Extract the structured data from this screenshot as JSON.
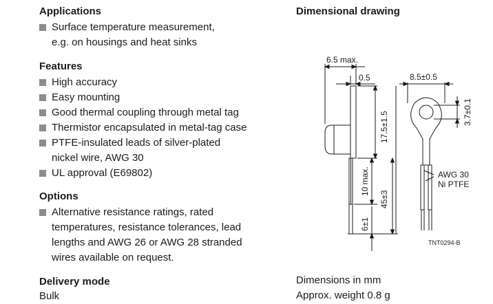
{
  "applications": {
    "heading": "Applications",
    "items": [
      {
        "lines": [
          "Surface temperature measurement,",
          "e.g. on housings and heat sinks"
        ]
      }
    ]
  },
  "features": {
    "heading": "Features",
    "items": [
      {
        "lines": [
          "High accuracy"
        ]
      },
      {
        "lines": [
          "Easy mounting"
        ]
      },
      {
        "lines": [
          "Good thermal coupling through metal tag"
        ]
      },
      {
        "lines": [
          "Thermistor encapsulated in metal-tag case"
        ]
      },
      {
        "lines": [
          "PTFE-insulated leads of silver-plated",
          "nickel wire, AWG 30"
        ]
      },
      {
        "lines": [
          "UL approval (E69802)"
        ]
      }
    ]
  },
  "options": {
    "heading": "Options",
    "items": [
      {
        "lines": [
          "Alternative resistance ratings, rated",
          "temperatures, resistance tolerances, lead",
          "lengths and AWG 26 or AWG 28 stranded",
          "wires available on request."
        ]
      }
    ]
  },
  "delivery": {
    "heading": "Delivery mode",
    "value": "Bulk"
  },
  "drawing": {
    "heading": "Dimensional drawing",
    "dim_width": "6.5 max.",
    "dim_thickness": "0.5",
    "dim_ring": "8.5±0.5",
    "dim_hole": "3.7±0.1",
    "dim_tag": "17.5±1.5",
    "dim_insulation": "10 max.",
    "dim_leads": "45±3",
    "dim_strip": "6±1",
    "wire_label_1": "AWG 30",
    "wire_label_2": "Ni PTFE",
    "drawing_code": "TNT0294-B",
    "footer_1": "Dimensions in mm",
    "footer_2": "Approx. weight 0.8 g"
  }
}
